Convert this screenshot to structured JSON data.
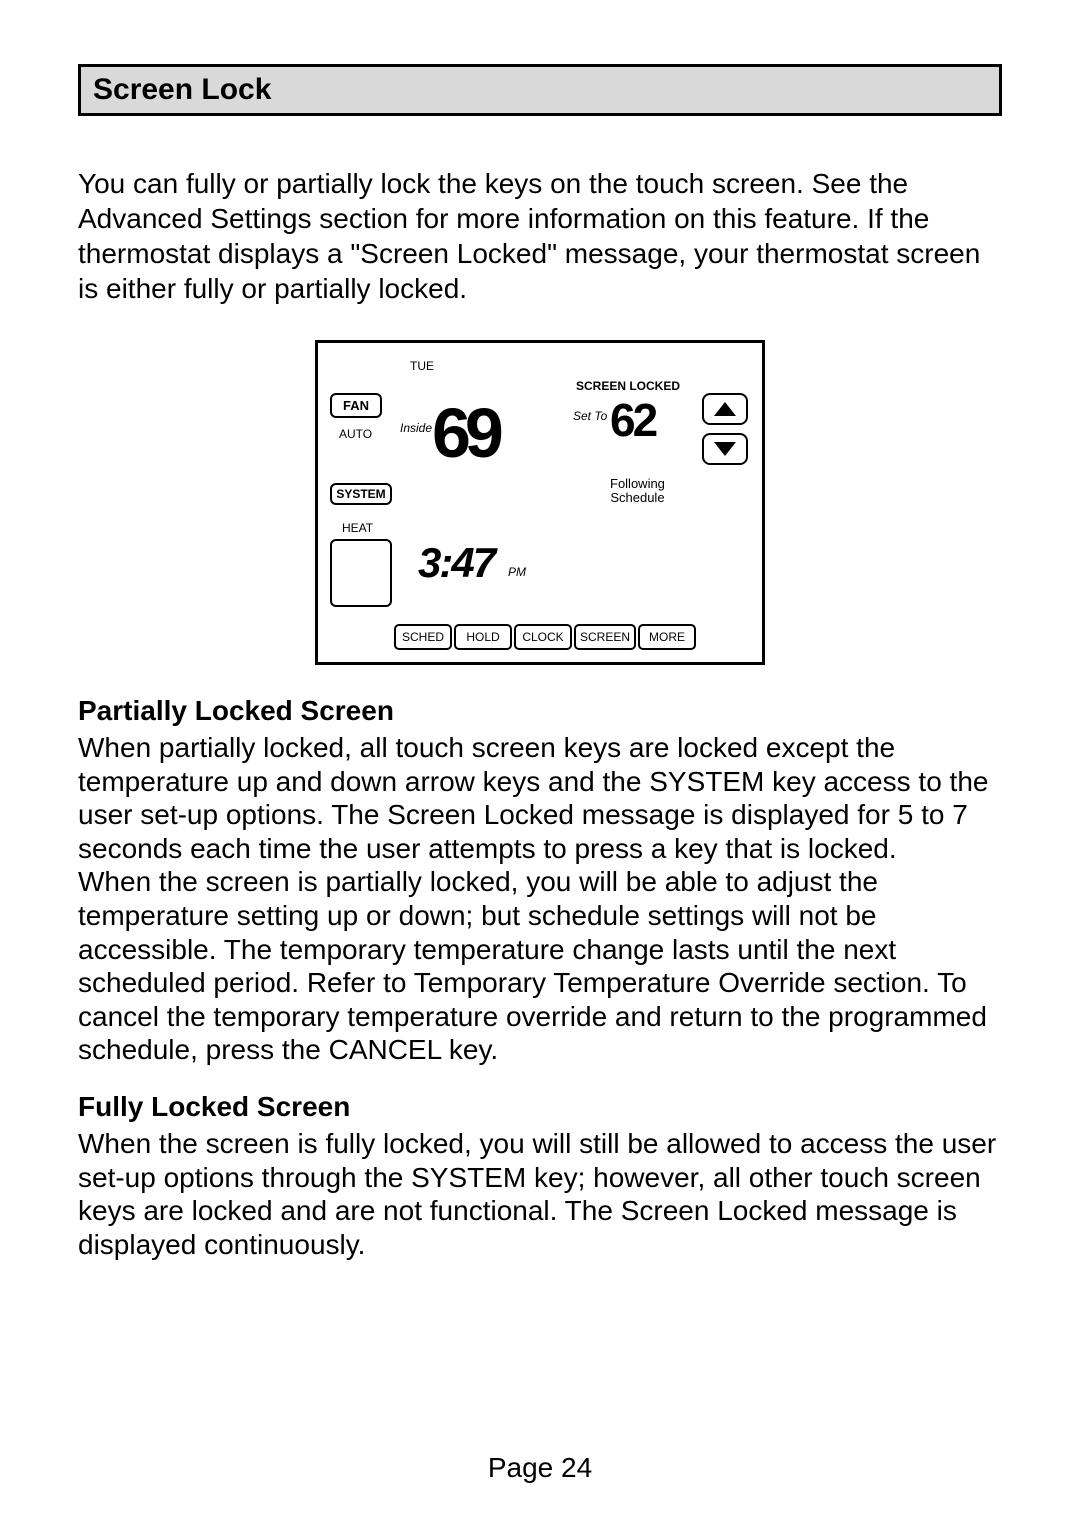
{
  "title": "Screen Lock",
  "intro": "You can fully or partially lock the keys on the touch screen. See the Advanced Settings section for more information on this feature. If the thermostat displays a \"Screen Locked\" message, your thermostat screen is either fully or partially locked.",
  "thermostat": {
    "day": "TUE",
    "fan_label": "FAN",
    "fan_mode": "AUTO",
    "system_label": "SYSTEM",
    "system_mode": "HEAT",
    "inside_label": "Inside",
    "inside_temp": "69",
    "time": "3:47",
    "ampm": "PM",
    "locked_msg": "SCREEN LOCKED",
    "setto_label": "Set To",
    "setto_temp": "62",
    "following": "Following\nSchedule",
    "buttons": [
      "SCHED",
      "HOLD",
      "CLOCK",
      "SCREEN",
      "MORE"
    ]
  },
  "partial_heading": "Partially Locked Screen",
  "partial_p1": "When partially locked, all touch screen keys are locked except the temperature up and down arrow keys and the SYSTEM key access to the user set-up options. The Screen Locked message is displayed for 5 to 7 seconds each time the user attempts to press a key that is locked.",
  "partial_p2": "When the screen is partially locked, you will be able to adjust the temperature setting up or down; but schedule settings will not be accessible. The temporary temperature change lasts until the next scheduled period. Refer to Temporary Temperature Override section. To cancel the temporary temperature override and return to the programmed schedule, press the CANCEL key.",
  "fully_heading": "Fully Locked Screen",
  "fully_p": "When the screen is fully locked, you will still be allowed to access the user set-up options through the SYSTEM key; however, all other touch screen keys are locked and are not functional. The Screen Locked message is displayed continuously.",
  "page": "Page 24"
}
